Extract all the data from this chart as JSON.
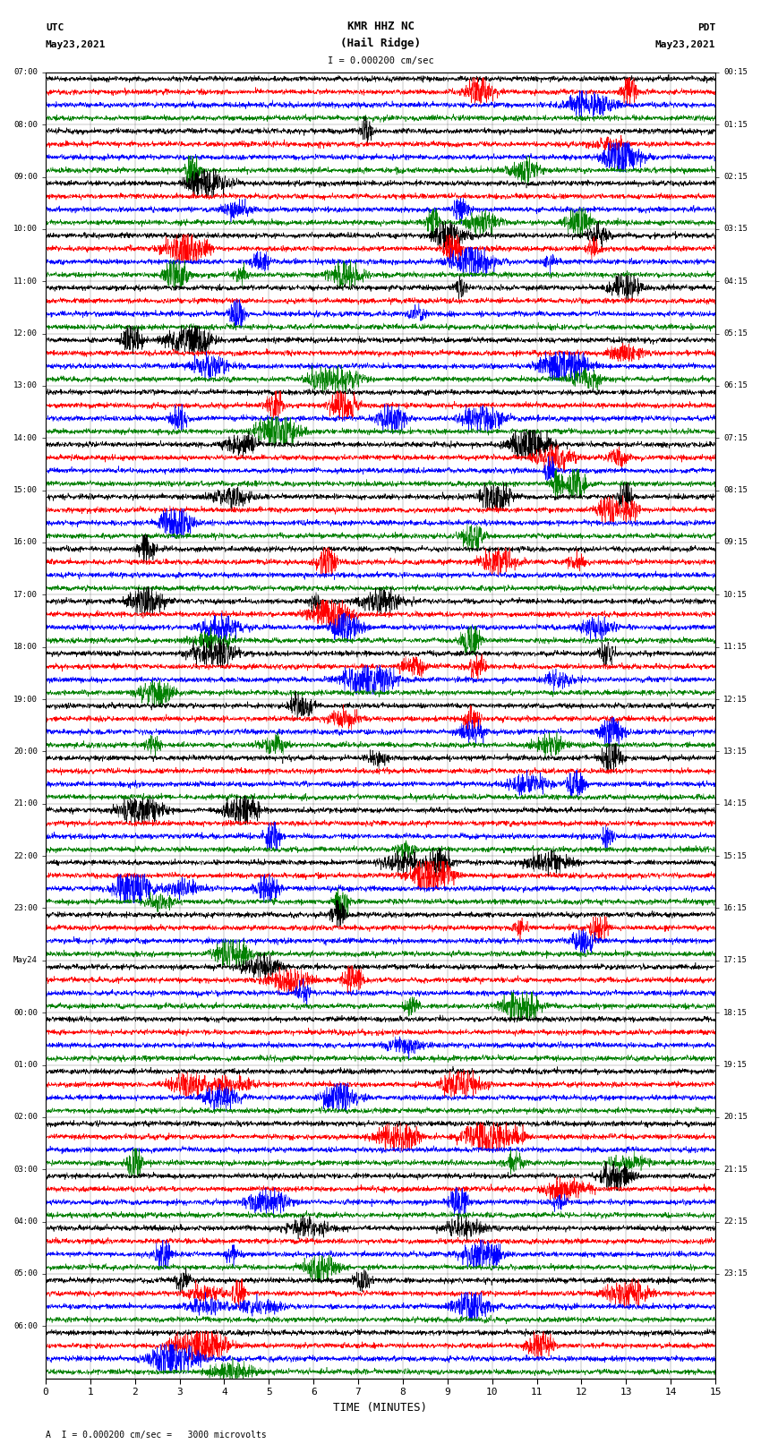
{
  "title_line1": "KMR HHZ NC",
  "title_line2": "(Hail Ridge)",
  "scale_label": "I = 0.000200 cm/sec",
  "left_header_line1": "UTC",
  "left_header_line2": "May23,2021",
  "right_header_line1": "PDT",
  "right_header_line2": "May23,2021",
  "xlabel": "TIME (MINUTES)",
  "footnote": "A  I = 0.000200 cm/sec =   3000 microvolts",
  "left_times": [
    "07:00",
    "08:00",
    "09:00",
    "10:00",
    "11:00",
    "12:00",
    "13:00",
    "14:00",
    "15:00",
    "16:00",
    "17:00",
    "18:00",
    "19:00",
    "20:00",
    "21:00",
    "22:00",
    "23:00",
    "May24",
    "00:00",
    "01:00",
    "02:00",
    "03:00",
    "04:00",
    "05:00",
    "06:00"
  ],
  "right_times": [
    "00:15",
    "01:15",
    "02:15",
    "03:15",
    "04:15",
    "05:15",
    "06:15",
    "07:15",
    "08:15",
    "09:15",
    "10:15",
    "11:15",
    "12:15",
    "13:15",
    "14:15",
    "15:15",
    "16:15",
    "17:15",
    "18:15",
    "19:15",
    "20:15",
    "21:15",
    "22:15",
    "23:15"
  ],
  "num_rows": 25,
  "traces_per_row": 4,
  "colors": [
    "black",
    "red",
    "blue",
    "green"
  ],
  "bg_color": "white",
  "x_ticks": [
    0,
    1,
    2,
    3,
    4,
    5,
    6,
    7,
    8,
    9,
    10,
    11,
    12,
    13,
    14,
    15
  ],
  "x_lim": [
    0,
    15
  ],
  "fig_width": 8.5,
  "fig_height": 16.13,
  "dpi": 100,
  "trace_amp": 0.055,
  "lw": 0.4
}
